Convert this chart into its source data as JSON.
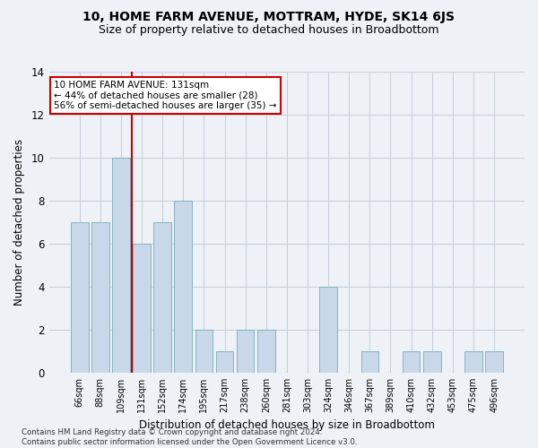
{
  "title": "10, HOME FARM AVENUE, MOTTRAM, HYDE, SK14 6JS",
  "subtitle": "Size of property relative to detached houses in Broadbottom",
  "xlabel": "Distribution of detached houses by size in Broadbottom",
  "ylabel": "Number of detached properties",
  "categories": [
    "66sqm",
    "88sqm",
    "109sqm",
    "131sqm",
    "152sqm",
    "174sqm",
    "195sqm",
    "217sqm",
    "238sqm",
    "260sqm",
    "281sqm",
    "303sqm",
    "324sqm",
    "346sqm",
    "367sqm",
    "389sqm",
    "410sqm",
    "432sqm",
    "453sqm",
    "475sqm",
    "496sqm"
  ],
  "values": [
    7,
    7,
    10,
    6,
    7,
    8,
    2,
    1,
    2,
    2,
    0,
    0,
    4,
    0,
    1,
    0,
    1,
    1,
    0,
    1,
    1
  ],
  "bar_color": "#c8d8e8",
  "bar_edge_color": "#7aaabb",
  "highlight_line_color": "#cc0000",
  "highlight_index": 3,
  "ylim": [
    0,
    14
  ],
  "yticks": [
    0,
    2,
    4,
    6,
    8,
    10,
    12,
    14
  ],
  "annotation_text": "10 HOME FARM AVENUE: 131sqm\n← 44% of detached houses are smaller (28)\n56% of semi-detached houses are larger (35) →",
  "annotation_box_color": "#ffffff",
  "annotation_box_edge": "#cc0000",
  "footnote": "Contains HM Land Registry data © Crown copyright and database right 2024.\nContains public sector information licensed under the Open Government Licence v3.0.",
  "background_color": "#eef2f7",
  "grid_color": "#c8d0da",
  "title_fontsize": 10,
  "subtitle_fontsize": 9
}
